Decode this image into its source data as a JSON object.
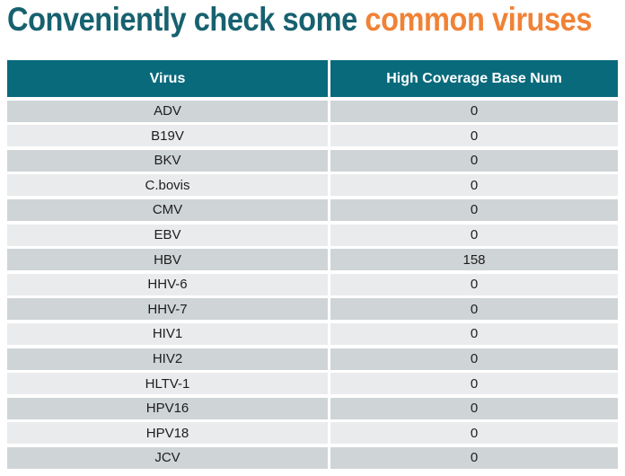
{
  "title": {
    "part1": "Conveniently check some ",
    "part2": "common viruses"
  },
  "colors": {
    "title_teal": "#17616F",
    "title_orange": "#F08236",
    "header_bg": "#096A7C",
    "header_text": "#FFFFFF",
    "row_dark": "#CFD4D6",
    "row_light": "#E9EBEC",
    "cell_text": "#1E1E1E"
  },
  "table": {
    "columns": [
      "Virus",
      "High Coverage Base Num"
    ],
    "rows": [
      {
        "virus": "ADV",
        "value": "0"
      },
      {
        "virus": "B19V",
        "value": "0"
      },
      {
        "virus": "BKV",
        "value": "0"
      },
      {
        "virus": "C.bovis",
        "value": "0"
      },
      {
        "virus": "CMV",
        "value": "0"
      },
      {
        "virus": "EBV",
        "value": "0"
      },
      {
        "virus": "HBV",
        "value": "158"
      },
      {
        "virus": "HHV-6",
        "value": "0"
      },
      {
        "virus": "HHV-7",
        "value": "0"
      },
      {
        "virus": "HIV1",
        "value": "0"
      },
      {
        "virus": "HIV2",
        "value": "0"
      },
      {
        "virus": "HLTV-1",
        "value": "0"
      },
      {
        "virus": "HPV16",
        "value": "0"
      },
      {
        "virus": "HPV18",
        "value": "0"
      },
      {
        "virus": "JCV",
        "value": "0"
      }
    ]
  }
}
